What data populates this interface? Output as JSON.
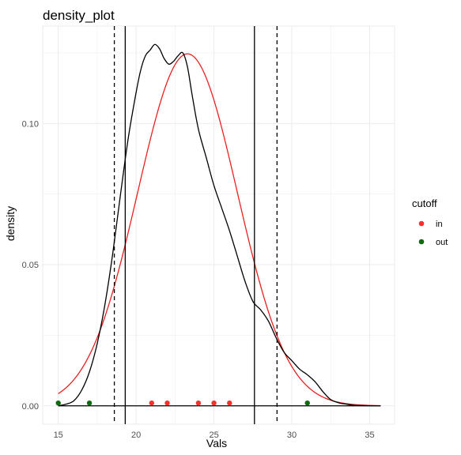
{
  "chart_data": {
    "type": "line",
    "title": "density_plot",
    "xlabel": "Vals",
    "ylabel": "density",
    "xlim": [
      14.0,
      36.6
    ],
    "ylim": [
      -0.0065,
      0.1345
    ],
    "xticks": [
      15,
      20,
      25,
      30,
      35
    ],
    "xtick_labels": [
      "15",
      "20",
      "25",
      "30",
      "35"
    ],
    "yticks": [
      0.0,
      0.05,
      0.1
    ],
    "ytick_labels": [
      "0.00",
      "0.05",
      "0.10"
    ],
    "grid": true,
    "series": [
      {
        "kind": "kde",
        "color": "#000000",
        "x": [
          15.0,
          15.5,
          16.0,
          16.5,
          17.0,
          17.5,
          18.0,
          18.5,
          19.0,
          19.5,
          20.0,
          20.3,
          20.6,
          20.9,
          21.2,
          21.5,
          21.8,
          22.1,
          22.4,
          22.7,
          23.0,
          23.3,
          23.6,
          24.0,
          24.5,
          25.0,
          25.5,
          26.0,
          26.5,
          27.0,
          27.5,
          28.0,
          28.5,
          29.0,
          29.5,
          30.0,
          30.5,
          31.0,
          31.5,
          32.0,
          32.5,
          33.0,
          33.5,
          34.0,
          35.0,
          35.7
        ],
        "y": [
          0.0,
          0.0006,
          0.0018,
          0.0055,
          0.012,
          0.022,
          0.036,
          0.054,
          0.075,
          0.095,
          0.111,
          0.119,
          0.124,
          0.126,
          0.128,
          0.1265,
          0.123,
          0.121,
          0.122,
          0.124,
          0.125,
          0.12,
          0.11,
          0.098,
          0.088,
          0.078,
          0.07,
          0.062,
          0.053,
          0.044,
          0.037,
          0.034,
          0.03,
          0.024,
          0.019,
          0.016,
          0.013,
          0.011,
          0.0085,
          0.005,
          0.0022,
          0.0011,
          0.0006,
          0.0002,
          5e-05,
          0.0
        ]
      },
      {
        "kind": "normal-fit",
        "color": "#e8211f",
        "mean": 23.3,
        "sd": 3.2,
        "x_range": [
          15.0,
          35.7
        ]
      }
    ],
    "vlines": [
      {
        "x": 18.6,
        "style": "dashed",
        "color": "#000000"
      },
      {
        "x": 19.3,
        "style": "solid",
        "color": "#000000"
      },
      {
        "x": 27.6,
        "style": "solid",
        "color": "#000000"
      },
      {
        "x": 29.05,
        "style": "dashed",
        "color": "#000000"
      }
    ],
    "baseline": {
      "y": 0.0,
      "x_range": [
        15.0,
        35.7
      ],
      "color": "#000000"
    },
    "points": [
      {
        "x": 15,
        "y": 0.001,
        "group": "out"
      },
      {
        "x": 17,
        "y": 0.001,
        "group": "out"
      },
      {
        "x": 21,
        "y": 0.001,
        "group": "in"
      },
      {
        "x": 22,
        "y": 0.001,
        "group": "in"
      },
      {
        "x": 24,
        "y": 0.001,
        "group": "in"
      },
      {
        "x": 25,
        "y": 0.001,
        "group": "in"
      },
      {
        "x": 26,
        "y": 0.001,
        "group": "in"
      },
      {
        "x": 31,
        "y": 0.001,
        "group": "out"
      }
    ],
    "legend": {
      "title": "cutoff",
      "position": "right",
      "items": [
        {
          "label": "in",
          "color": "#f0332b"
        },
        {
          "label": "out",
          "color": "#0f6b0f"
        }
      ]
    },
    "colors": {
      "background": "#ffffff",
      "grid": "#ebebeb",
      "panel_border": "#ebebeb",
      "tick_text": "#4d4d4d"
    }
  }
}
